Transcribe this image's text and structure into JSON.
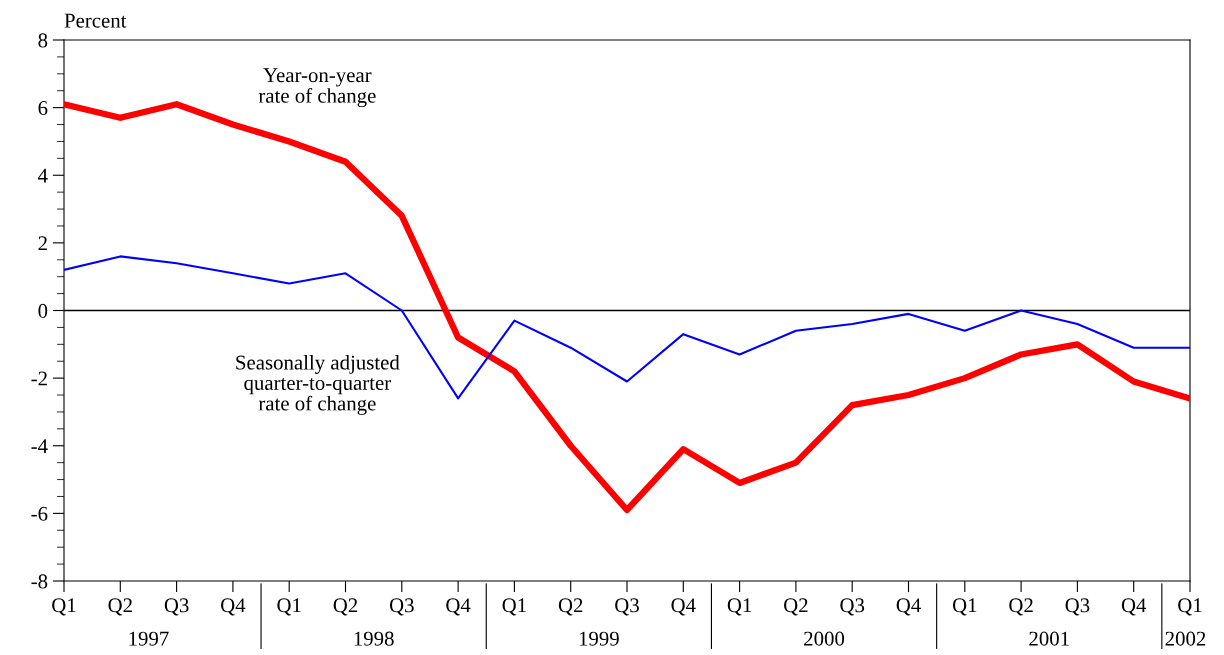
{
  "chart_data": {
    "type": "line",
    "ylabel": "Percent",
    "categories": [
      "Q1",
      "Q2",
      "Q3",
      "Q4",
      "Q1",
      "Q2",
      "Q3",
      "Q4",
      "Q1",
      "Q2",
      "Q3",
      "Q4",
      "Q1",
      "Q2",
      "Q3",
      "Q4",
      "Q1",
      "Q2",
      "Q3",
      "Q4",
      "Q1"
    ],
    "series": [
      {
        "name": "Year-on-year\nrate of change",
        "color": "#ff0000",
        "values": [
          6.1,
          5.7,
          6.1,
          5.5,
          5.0,
          4.4,
          2.8,
          -0.8,
          -1.8,
          -4.0,
          -5.9,
          -4.1,
          -5.1,
          -4.5,
          -2.8,
          -2.5,
          -2.0,
          -1.3,
          -1.0,
          -2.1,
          -2.6
        ]
      },
      {
        "name": "Seasonally adjusted\nquarter-to-quarter\nrate of change",
        "color": "#0000ff",
        "values": [
          1.2,
          1.6,
          1.4,
          1.1,
          0.8,
          1.1,
          0.0,
          -2.6,
          -0.3,
          -1.1,
          -2.1,
          -0.7,
          -1.3,
          -0.6,
          -0.4,
          -0.1,
          -0.6,
          0.0,
          -0.4,
          -1.1,
          -1.1
        ]
      }
    ],
    "ylim": [
      -8,
      8
    ],
    "yticks": [
      -8,
      -6,
      -4,
      -2,
      0,
      2,
      4,
      6,
      8
    ],
    "ref_lines": [
      {
        "axis": "y",
        "value": 0,
        "color": "#000000"
      }
    ],
    "annotations": [
      "1997",
      "1998",
      "1999",
      "2000",
      "2001",
      "2002"
    ],
    "grid": false,
    "legend": false,
    "marker": "none",
    "line_style": "solid"
  }
}
